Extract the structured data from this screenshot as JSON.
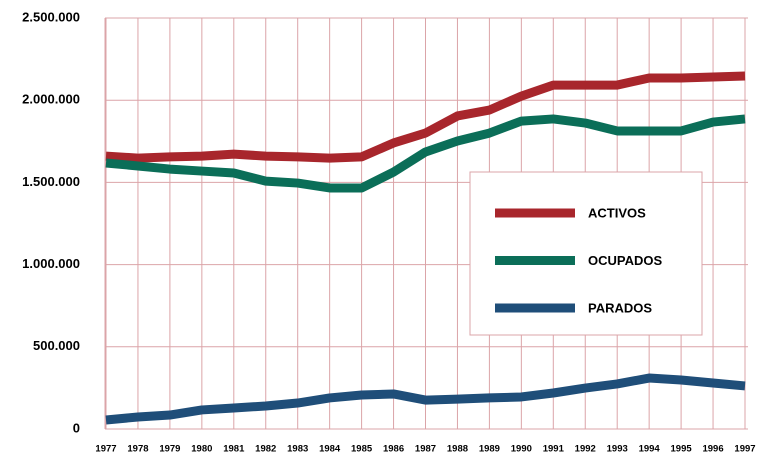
{
  "chart_data": {
    "type": "line",
    "categories": [
      "1977",
      "1978",
      "1979",
      "1980",
      "1981",
      "1982",
      "1983",
      "1984",
      "1985",
      "1986",
      "1987",
      "1988",
      "1989",
      "1990",
      "1991",
      "1992",
      "1993",
      "1994",
      "1995",
      "1996",
      "1997"
    ],
    "series": [
      {
        "name": "ACTIVOS",
        "color": "#a8262c",
        "values": [
          1660000,
          1648000,
          1655000,
          1660000,
          1672000,
          1660000,
          1655000,
          1648000,
          1655000,
          1740000,
          1800000,
          1904000,
          1940000,
          2025000,
          2092000,
          2092000,
          2092000,
          2135000,
          2135000,
          2141000,
          2147000
        ]
      },
      {
        "name": "OCUPADOS",
        "color": "#0b6e58",
        "values": [
          1618000,
          1600000,
          1581000,
          1569000,
          1557000,
          1508000,
          1496000,
          1466000,
          1466000,
          1563000,
          1685000,
          1752000,
          1800000,
          1873000,
          1886000,
          1861000,
          1813000,
          1813000,
          1813000,
          1867000,
          1886000
        ]
      },
      {
        "name": "PARADOS",
        "color": "#1f4e79",
        "values": [
          55000,
          73000,
          85000,
          116000,
          128000,
          140000,
          158000,
          189000,
          207000,
          213000,
          176000,
          182000,
          189000,
          195000,
          219000,
          249000,
          274000,
          310000,
          298000,
          280000,
          262000
        ]
      }
    ],
    "ylim": [
      0,
      2500000
    ],
    "yticks": [
      0,
      {
        "value": 500000,
        "label": "500.000"
      },
      {
        "value": 1000000,
        "label": "1.000.000"
      },
      {
        "value": 1500000,
        "label": "1.500.000"
      },
      {
        "value": 2000000,
        "label": "2.000.000"
      },
      {
        "value": 2500000,
        "label": "2.500.000"
      }
    ],
    "grid": true,
    "legend": "right"
  }
}
